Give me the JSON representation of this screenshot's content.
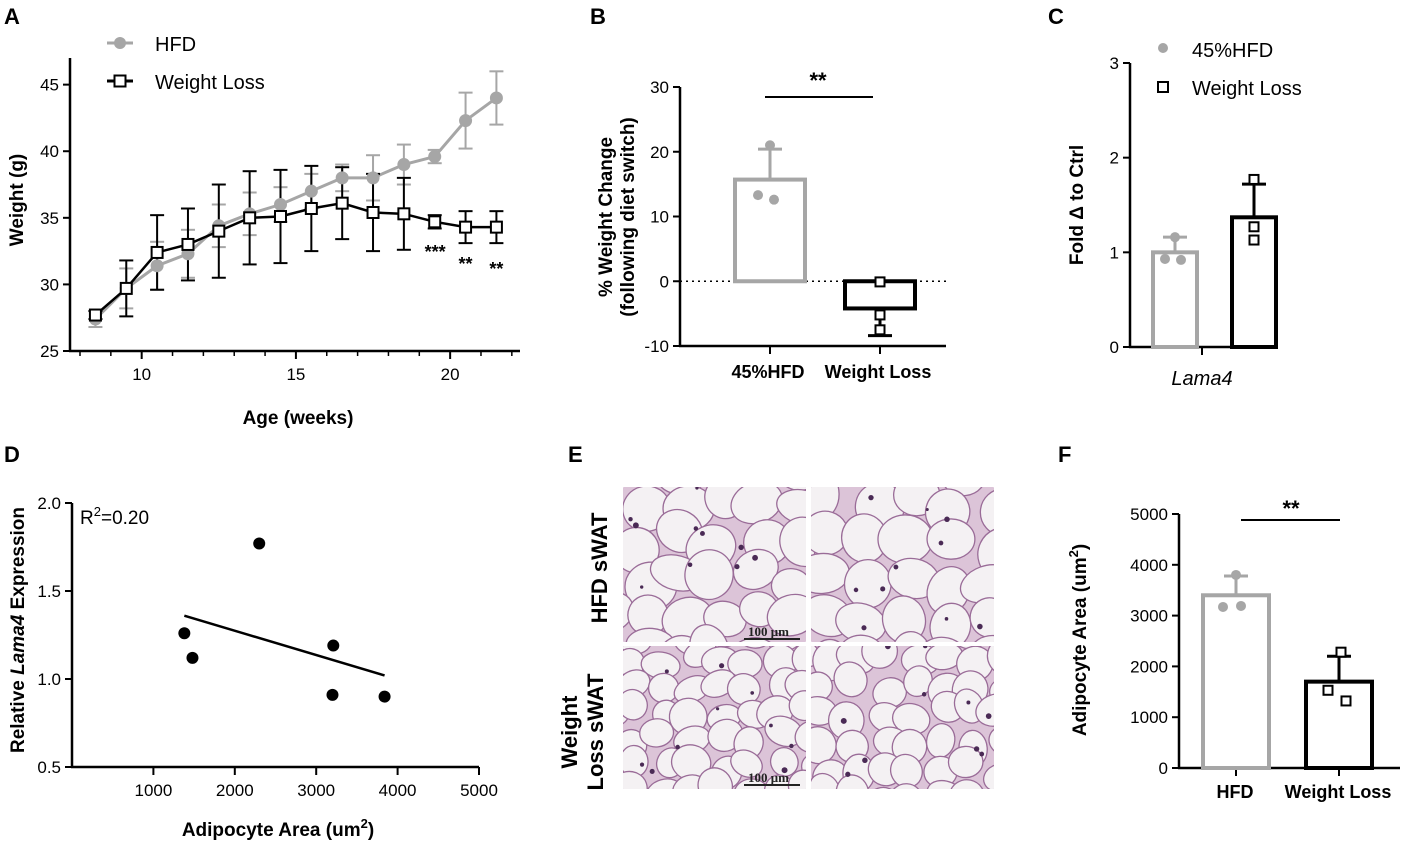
{
  "colors": {
    "hfd": "#a6a6a6",
    "wl": "#000000",
    "tissue": "#dcc4d8",
    "cellwall": "#9a6c98"
  },
  "panels": {
    "A": "A",
    "B": "B",
    "C": "C",
    "D": "D",
    "E": "E",
    "F": "F"
  },
  "chart_data": [
    {
      "panel": "A",
      "type": "line",
      "xlabel": "Age (weeks)",
      "ylabel": "Weight (g)",
      "xlim": [
        8,
        22.2
      ],
      "ylim": [
        25,
        47
      ],
      "xticks": [
        "10",
        "15",
        "20"
      ],
      "yticks": [
        "25",
        "30",
        "35",
        "40",
        "45"
      ],
      "legend": {
        "position": "top-left",
        "entries": [
          "HFD",
          "Weight Loss"
        ]
      },
      "series": [
        {
          "name": "HFD",
          "x": [
            8.5,
            9.5,
            10.5,
            11.5,
            12.5,
            13.5,
            14.5,
            15.5,
            16.5,
            17.5,
            18.5,
            19.5,
            20.5,
            21.5
          ],
          "y": [
            27.4,
            29.7,
            31.4,
            32.3,
            34.4,
            35.3,
            36.0,
            37.0,
            38.0,
            38.0,
            39.0,
            39.6,
            42.3,
            44.0
          ],
          "err": [
            0.6,
            1.5,
            1.8,
            1.8,
            1.6,
            1.6,
            1.3,
            1.3,
            1.0,
            1.7,
            1.5,
            0.5,
            2.1,
            2.0
          ]
        },
        {
          "name": "Weight Loss",
          "x": [
            8.5,
            9.5,
            10.5,
            11.5,
            12.5,
            13.5,
            14.5,
            15.5,
            16.5,
            17.5,
            18.5,
            19.5,
            20.5,
            21.5
          ],
          "y": [
            27.7,
            29.7,
            32.4,
            33.0,
            34.0,
            35.0,
            35.1,
            35.7,
            36.1,
            35.4,
            35.3,
            34.7,
            34.3,
            34.3
          ],
          "err": [
            0.3,
            2.1,
            2.8,
            2.7,
            3.5,
            3.5,
            3.5,
            3.2,
            2.7,
            2.9,
            2.7,
            0.5,
            1.2,
            1.2
          ]
        }
      ],
      "annotations": [
        {
          "x": 20.0,
          "text": "***"
        },
        {
          "x": 20.5,
          "text": "**"
        },
        {
          "x": 21.5,
          "text": "**"
        }
      ]
    },
    {
      "panel": "B",
      "type": "bar",
      "ylabel": "% Weight Change",
      "ylabel2": "(following diet switch)",
      "ylim": [
        -10,
        30
      ],
      "yticks": [
        "-10",
        "0",
        "10",
        "20",
        "30"
      ],
      "categories": [
        "45%HFD",
        "Weight Loss"
      ],
      "values": [
        15.7,
        -4.2
      ],
      "err": [
        4.7,
        4.2
      ],
      "points": [
        [
          21.0,
          13.3,
          12.6
        ],
        [
          -0.1,
          -5.2,
          -7.5
        ]
      ],
      "significance": "**"
    },
    {
      "panel": "C",
      "type": "bar",
      "ylabel": "Fold Δ to Ctrl",
      "xlabel": "Lama4",
      "ylim": [
        0,
        3
      ],
      "yticks": [
        "0",
        "1",
        "2",
        "3"
      ],
      "categories": [
        "45%HFD",
        "Weight Loss"
      ],
      "values": [
        1.0,
        1.37
      ],
      "err": [
        0.16,
        0.35
      ],
      "points": [
        [
          1.16,
          0.93,
          0.92
        ],
        [
          1.77,
          1.27,
          1.13
        ]
      ],
      "legend": {
        "position": "top-right",
        "entries": [
          "45%HFD",
          "Weight Loss"
        ]
      }
    },
    {
      "panel": "D",
      "type": "scatter",
      "xlabel": "Adipocyte Area (um",
      "xlabel_sup": "2",
      "xlabel_end": ")",
      "ylabel_a": "Relative ",
      "ylabel_b": "Lama4",
      "ylabel_c": " Expression",
      "xlim": [
        0,
        5000
      ],
      "ylim": [
        0.5,
        2.0
      ],
      "xticks": [
        "1000",
        "2000",
        "3000",
        "4000",
        "5000"
      ],
      "yticks": [
        "0.5",
        "1.0",
        "1.5",
        "2.0"
      ],
      "x": [
        1380,
        1480,
        2300,
        3210,
        3200,
        3840
      ],
      "y": [
        1.26,
        1.12,
        1.77,
        1.19,
        0.91,
        0.9
      ],
      "fit": {
        "x": [
          1380,
          3840
        ],
        "y": [
          1.36,
          1.02
        ]
      },
      "r2_prefix": "R",
      "r2_sup": "2",
      "r2_value": "=0.20"
    },
    {
      "panel": "F",
      "type": "bar",
      "ylabel": "Adipocyte Area (um",
      "ylabel_sup": "2",
      "ylabel_end": ")",
      "ylim": [
        0,
        5000
      ],
      "yticks": [
        "0",
        "1000",
        "2000",
        "3000",
        "4000",
        "5000"
      ],
      "categories": [
        "HFD",
        "Weight Loss"
      ],
      "values": [
        3400,
        1700
      ],
      "err": [
        380,
        500
      ],
      "points": [
        [
          3800,
          3170,
          3190
        ],
        [
          2280,
          1530,
          1320
        ]
      ],
      "significance": "**"
    }
  ],
  "histology": {
    "row_labels": [
      "HFD sWAT",
      "Weight Loss sWAT"
    ],
    "row_label_line1": "HFD sWAT",
    "row_label_w1": "Weight",
    "row_label_w2": "Loss sWAT",
    "scale_text": "100 μm"
  }
}
